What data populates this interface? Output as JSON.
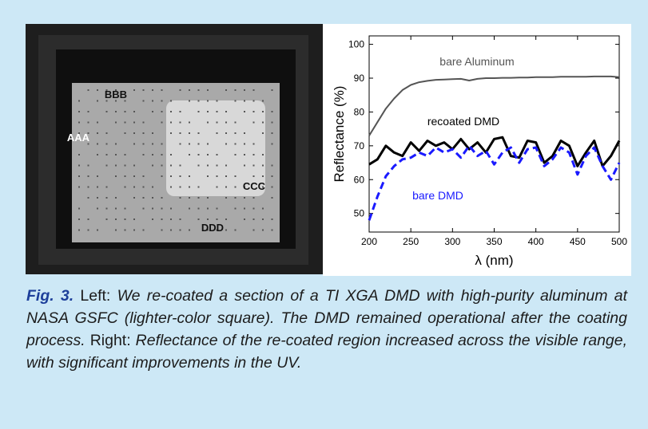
{
  "photo": {
    "labels": [
      "BBB",
      "AAA",
      "CCC",
      "DDD"
    ]
  },
  "chart_data": {
    "type": "line",
    "xlabel": "λ (nm)",
    "ylabel": "Reflectance (%)",
    "x": [
      200,
      210,
      220,
      230,
      240,
      250,
      260,
      270,
      280,
      290,
      300,
      310,
      320,
      330,
      340,
      350,
      360,
      370,
      380,
      390,
      400,
      410,
      420,
      430,
      440,
      450,
      460,
      470,
      480,
      490,
      500
    ],
    "series": [
      {
        "name": "bare Aluminum",
        "color": "#555555",
        "dash": false,
        "values": [
          73,
          77,
          81,
          84,
          86.5,
          88,
          88.8,
          89.2,
          89.5,
          89.6,
          89.7,
          89.8,
          89.3,
          89.8,
          90,
          90,
          90.1,
          90.1,
          90.2,
          90.2,
          90.3,
          90.3,
          90.3,
          90.4,
          90.4,
          90.4,
          90.4,
          90.5,
          90.5,
          90.5,
          90.3
        ]
      },
      {
        "name": "recoated DMD",
        "color": "#000000",
        "dash": false,
        "values": [
          64.5,
          66,
          70,
          68,
          67,
          71,
          68.5,
          71.5,
          70,
          71,
          69,
          72,
          69,
          71,
          68,
          72,
          72.5,
          67,
          66.5,
          71.5,
          71,
          65,
          67,
          71.5,
          70,
          64,
          68,
          71.5,
          64,
          67,
          71.5
        ]
      },
      {
        "name": "bare DMD",
        "color": "#1a1aff",
        "dash": true,
        "values": [
          48,
          55,
          61,
          64,
          66,
          66.5,
          68,
          67,
          69.5,
          68,
          69,
          66.5,
          70,
          67,
          68.5,
          64.5,
          68,
          69.5,
          65,
          69,
          69.5,
          64,
          66,
          69.5,
          68,
          61.5,
          67,
          69.5,
          64,
          60,
          65
        ]
      }
    ],
    "xlim": [
      200,
      500
    ],
    "ylim": [
      44.5,
      102.5
    ],
    "xticks": [
      200,
      250,
      300,
      350,
      400,
      450,
      500
    ],
    "yticks": [
      50,
      60,
      70,
      80,
      90,
      100
    ]
  },
  "caption": {
    "figure_label": "Fig. 3.",
    "left_label": "Left:",
    "left_text": "We re-coated a section of a TI XGA DMD with high-purity aluminum at NASA GSFC (lighter-color square). The DMD remained operational after the coating process.",
    "right_label": "Right:",
    "right_text": "Reflectance of the re-coated region increased across the visible range, with significant improvements in the UV."
  }
}
